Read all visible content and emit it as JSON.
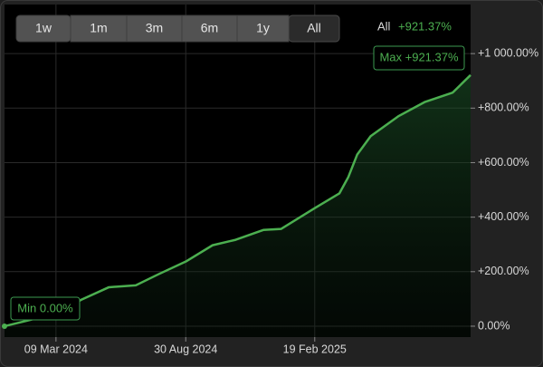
{
  "chart_data": {
    "type": "area",
    "periods": [
      "1w",
      "1m",
      "3m",
      "6m",
      "1y",
      "All"
    ],
    "summary": {
      "period": "All",
      "change": "+921.37%"
    },
    "annotations": {
      "max": "Max +921.37%",
      "min": "Min 0.00%"
    },
    "x": [
      "2023-12-31",
      "2024-01-30",
      "2024-03-09",
      "2024-04-12",
      "2024-05-19",
      "2024-06-24",
      "2024-07-24",
      "2024-08-30",
      "2024-10-05",
      "2024-11-05",
      "2024-12-12",
      "2025-01-05",
      "2025-02-19",
      "2025-03-24",
      "2025-04-05",
      "2025-04-17",
      "2025-05-05",
      "2025-06-11",
      "2025-07-17",
      "2025-08-23",
      "2025-09-16"
    ],
    "values": [
      0,
      20,
      47,
      97,
      143,
      150,
      190,
      237,
      297,
      317,
      353,
      357,
      433,
      487,
      547,
      630,
      697,
      770,
      823,
      857,
      921.37
    ],
    "color": "#4caf50",
    "xlim": [
      "2023-12-31",
      "2025-09-16"
    ],
    "xticks": [
      {
        "value": "2024-03-09",
        "label": "09 Mar 2024"
      },
      {
        "value": "2024-08-30",
        "label": "30 Aug 2024"
      },
      {
        "value": "2025-02-19",
        "label": "19 Feb 2025"
      }
    ],
    "ylim": [
      -40,
      1180
    ],
    "yticks": [
      {
        "value": 0,
        "label": "0.00%"
      },
      {
        "value": 200,
        "label": "+200.00%"
      },
      {
        "value": 400,
        "label": "+400.00%"
      },
      {
        "value": 600,
        "label": "+600.00%"
      },
      {
        "value": 800,
        "label": "+800.00%"
      },
      {
        "value": 1000,
        "label": "+1 000.00%"
      }
    ],
    "grid": true
  }
}
